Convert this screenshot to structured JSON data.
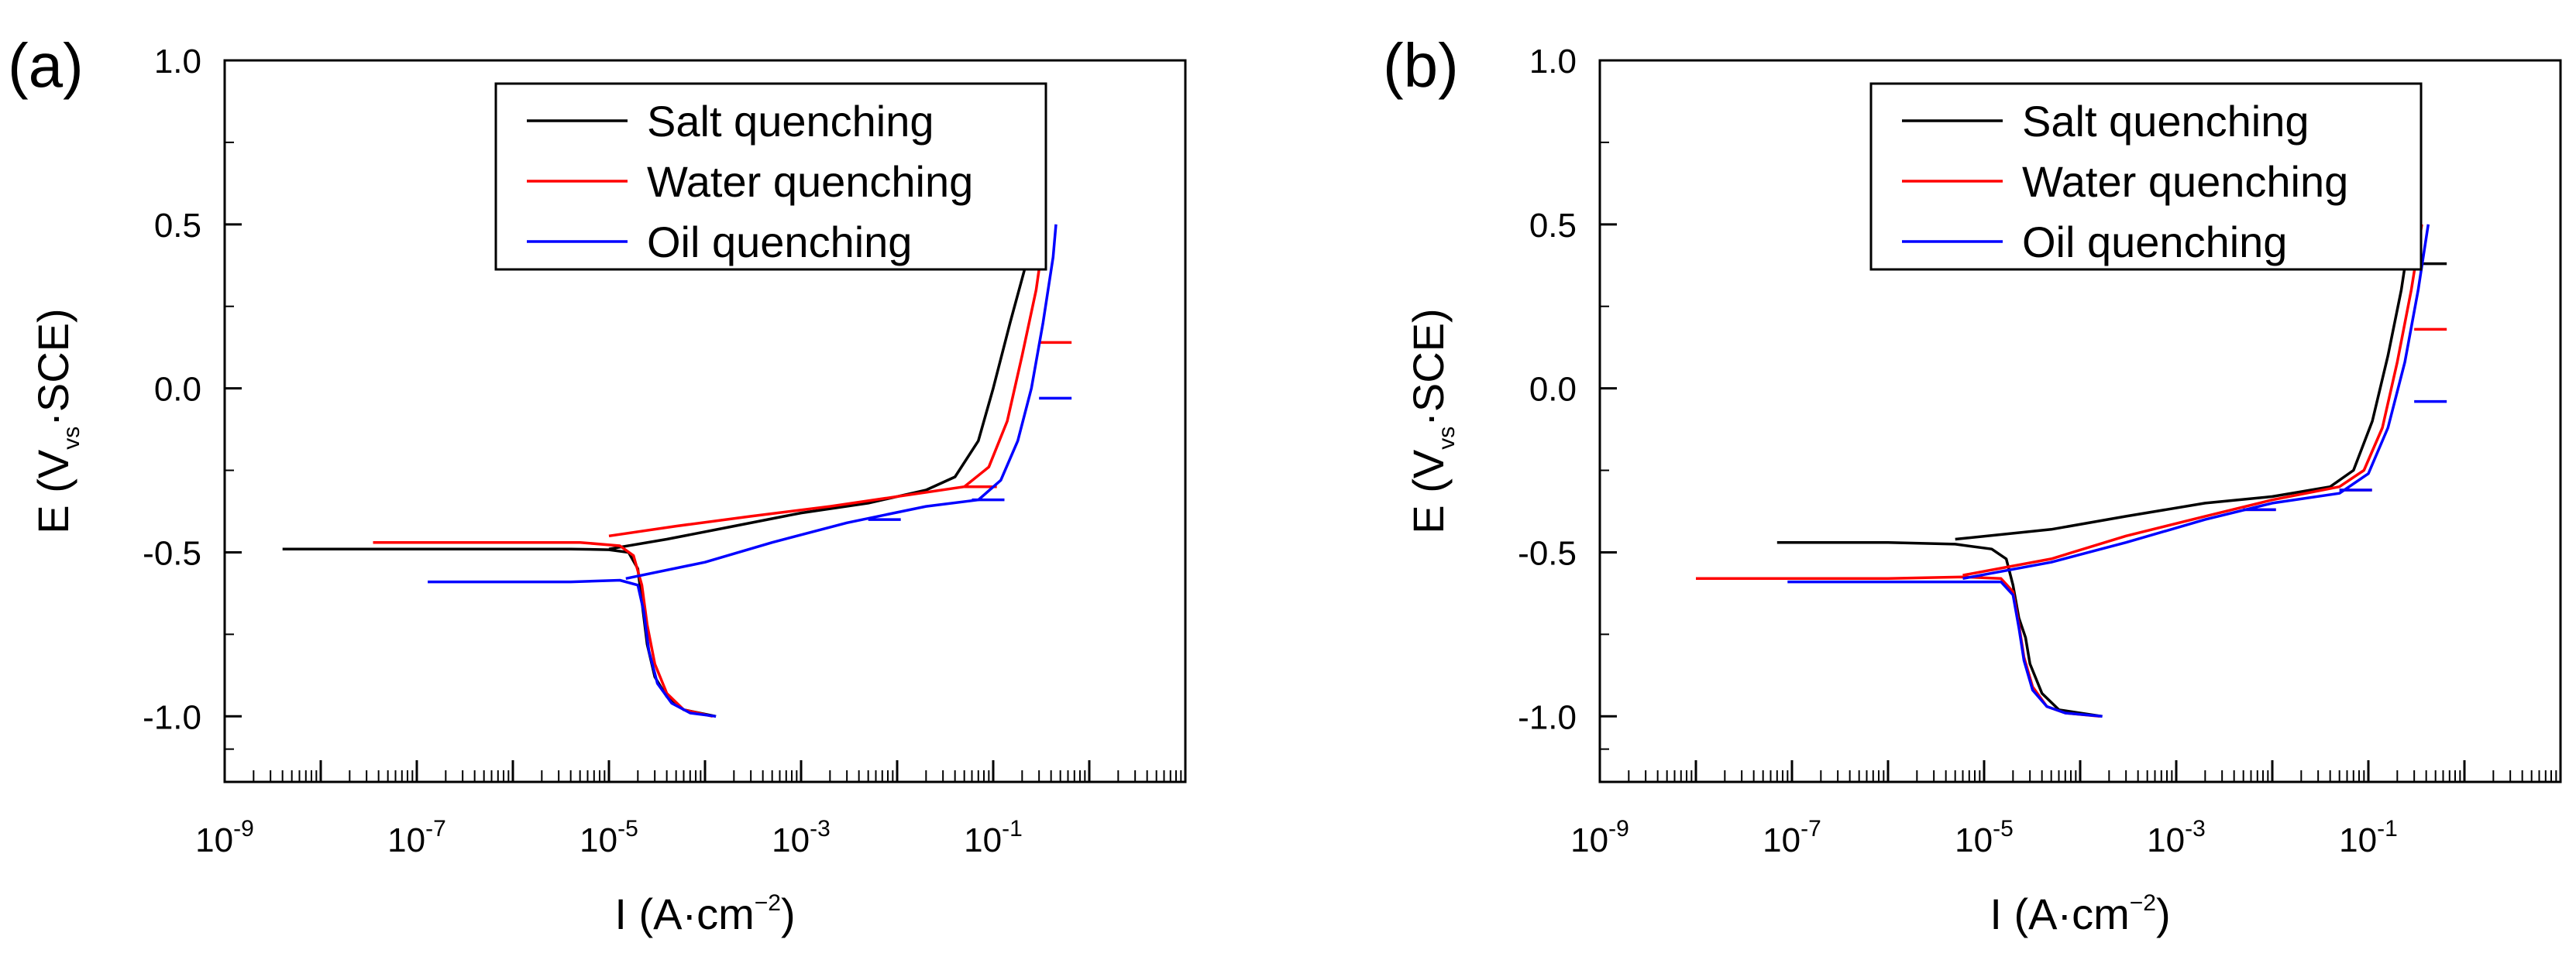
{
  "chart_data": [
    {
      "type": "line",
      "panel_label": "(a)",
      "xlabel": "I (A·cm",
      "xlabel_sup": "−2",
      "xlabel_end": ")",
      "ylabel_main": "E (V",
      "ylabel_sub": "vs",
      "ylabel_end": "·SCE)",
      "x_scale": "log",
      "xlim": [
        1e-09,
        10
      ],
      "ylim": [
        -1.2,
        1.0
      ],
      "x_ticks": [
        {
          "base": "10",
          "exp": "-9"
        },
        {
          "base": "10",
          "exp": "-7"
        },
        {
          "base": "10",
          "exp": "-5"
        },
        {
          "base": "10",
          "exp": "-3"
        },
        {
          "base": "10",
          "exp": "-1"
        }
      ],
      "y_ticks": [
        "1.0",
        "0.5",
        "0.0",
        "-0.5",
        "-1.0"
      ],
      "legend_position": "top",
      "series": [
        {
          "name": "Salt quenching",
          "color": "#000000",
          "points": [
            [
              4e-09,
              -0.49
            ],
            [
              1e-07,
              -0.49
            ],
            [
              1e-06,
              -0.49
            ],
            [
              4e-06,
              -0.49
            ],
            [
              1e-05,
              -0.492
            ],
            [
              1.6e-05,
              -0.5
            ],
            [
              2e-05,
              -0.55
            ],
            [
              2.2e-05,
              -0.65
            ],
            [
              2.5e-05,
              -0.78
            ],
            [
              3e-05,
              -0.88
            ],
            [
              4e-05,
              -0.94
            ],
            [
              6e-05,
              -0.98
            ],
            [
              0.00013,
              -1.0
            ]
          ],
          "anodic": [
            [
              1e-05,
              -0.49
            ],
            [
              4e-05,
              -0.46
            ],
            [
              0.0002,
              -0.42
            ],
            [
              0.001,
              -0.38
            ],
            [
              0.005,
              -0.35
            ],
            [
              0.02,
              -0.31
            ],
            [
              0.04,
              -0.27
            ],
            [
              0.07,
              -0.16
            ],
            [
              0.1,
              0.0
            ],
            [
              0.15,
              0.2
            ],
            [
              0.22,
              0.38
            ],
            [
              0.25,
              0.5
            ]
          ],
          "marks": []
        },
        {
          "name": "Water quenching",
          "color": "#ff0000",
          "points": [
            [
              3.5e-08,
              -0.47
            ],
            [
              1e-06,
              -0.47
            ],
            [
              5e-06,
              -0.47
            ],
            [
              1.3e-05,
              -0.48
            ],
            [
              1.8e-05,
              -0.51
            ],
            [
              2.2e-05,
              -0.6
            ],
            [
              2.5e-05,
              -0.72
            ],
            [
              3e-05,
              -0.84
            ],
            [
              4e-05,
              -0.93
            ],
            [
              6e-05,
              -0.98
            ],
            [
              0.00012,
              -1.0
            ]
          ],
          "anodic": [
            [
              1e-05,
              -0.45
            ],
            [
              5e-05,
              -0.42
            ],
            [
              0.0003,
              -0.39
            ],
            [
              0.002,
              -0.36
            ],
            [
              0.01,
              -0.33
            ],
            [
              0.05,
              -0.3
            ],
            [
              0.09,
              -0.24
            ],
            [
              0.14,
              -0.1
            ],
            [
              0.2,
              0.1
            ],
            [
              0.28,
              0.3
            ],
            [
              0.35,
              0.5
            ]
          ],
          "marks": [
            [
              0.3,
              0.14
            ],
            [
              0.05,
              -0.3
            ]
          ]
        },
        {
          "name": "Oil quenching",
          "color": "#0000ff",
          "points": [
            [
              1.3e-07,
              -0.59
            ],
            [
              1e-06,
              -0.59
            ],
            [
              4e-06,
              -0.59
            ],
            [
              1.3e-05,
              -0.585
            ],
            [
              2e-05,
              -0.6
            ],
            [
              2.3e-05,
              -0.68
            ],
            [
              2.6e-05,
              -0.8
            ],
            [
              3.2e-05,
              -0.9
            ],
            [
              4.5e-05,
              -0.96
            ],
            [
              7e-05,
              -0.99
            ],
            [
              0.00013,
              -1.0
            ]
          ],
          "anodic": [
            [
              1.5e-05,
              -0.58
            ],
            [
              0.0001,
              -0.53
            ],
            [
              0.0005,
              -0.47
            ],
            [
              0.003,
              -0.41
            ],
            [
              0.02,
              -0.36
            ],
            [
              0.07,
              -0.34
            ],
            [
              0.12,
              -0.28
            ],
            [
              0.18,
              -0.16
            ],
            [
              0.25,
              0.0
            ],
            [
              0.33,
              0.2
            ],
            [
              0.42,
              0.4
            ],
            [
              0.45,
              0.5
            ]
          ],
          "marks": [
            [
              0.3,
              -0.03
            ],
            [
              0.005,
              -0.4
            ],
            [
              0.06,
              -0.34
            ]
          ]
        }
      ]
    },
    {
      "type": "line",
      "panel_label": "(b)",
      "xlabel": "I (A·cm",
      "xlabel_sup": "−2",
      "xlabel_end": ")",
      "ylabel_main": "E (V",
      "ylabel_sub": "vs",
      "ylabel_end": "·SCE)",
      "x_scale": "log",
      "xlim": [
        1e-09,
        10
      ],
      "ylim": [
        -1.2,
        1.0
      ],
      "x_ticks": [
        {
          "base": "10",
          "exp": "-9"
        },
        {
          "base": "10",
          "exp": "-7"
        },
        {
          "base": "10",
          "exp": "-5"
        },
        {
          "base": "10",
          "exp": "-3"
        },
        {
          "base": "10",
          "exp": "-1"
        }
      ],
      "y_ticks": [
        "1.0",
        "0.5",
        "0.0",
        "-0.5",
        "-1.0"
      ],
      "legend_position": "top",
      "series": [
        {
          "name": "Salt quenching",
          "color": "#000000",
          "points": [
            [
              7e-08,
              -0.47
            ],
            [
              1e-06,
              -0.47
            ],
            [
              5e-06,
              -0.475
            ],
            [
              1.2e-05,
              -0.49
            ],
            [
              1.7e-05,
              -0.52
            ],
            [
              2e-05,
              -0.6
            ],
            [
              2.3e-05,
              -0.7
            ],
            [
              2.7e-05,
              -0.76
            ],
            [
              3e-05,
              -0.84
            ],
            [
              4e-05,
              -0.93
            ],
            [
              6e-05,
              -0.98
            ],
            [
              0.00017,
              -1.0
            ]
          ],
          "anodic": [
            [
              5e-06,
              -0.46
            ],
            [
              5e-05,
              -0.43
            ],
            [
              0.0003,
              -0.39
            ],
            [
              0.002,
              -0.35
            ],
            [
              0.01,
              -0.33
            ],
            [
              0.04,
              -0.3
            ],
            [
              0.07,
              -0.25
            ],
            [
              0.11,
              -0.1
            ],
            [
              0.16,
              0.1
            ],
            [
              0.22,
              0.3
            ],
            [
              0.28,
              0.5
            ]
          ],
          "marks": [
            [
              0.3,
              0.38
            ]
          ]
        },
        {
          "name": "Water quenching",
          "color": "#ff0000",
          "points": [
            [
              1e-08,
              -0.58
            ],
            [
              1e-06,
              -0.58
            ],
            [
              6e-06,
              -0.575
            ],
            [
              1.5e-05,
              -0.58
            ],
            [
              2e-05,
              -0.62
            ],
            [
              2.3e-05,
              -0.72
            ],
            [
              2.6e-05,
              -0.82
            ],
            [
              3.2e-05,
              -0.91
            ],
            [
              4.5e-05,
              -0.97
            ],
            [
              7e-05,
              -0.99
            ],
            [
              0.00016,
              -1.0
            ]
          ],
          "anodic": [
            [
              6e-06,
              -0.57
            ],
            [
              5e-05,
              -0.52
            ],
            [
              0.0003,
              -0.45
            ],
            [
              0.002,
              -0.39
            ],
            [
              0.01,
              -0.34
            ],
            [
              0.05,
              -0.3
            ],
            [
              0.09,
              -0.25
            ],
            [
              0.14,
              -0.12
            ],
            [
              0.2,
              0.08
            ],
            [
              0.28,
              0.3
            ],
            [
              0.36,
              0.5
            ]
          ],
          "marks": [
            [
              0.3,
              0.18
            ],
            [
              0.005,
              -0.37
            ],
            [
              0.05,
              -0.31
            ]
          ]
        },
        {
          "name": "Oil quenching",
          "color": "#0000ff",
          "points": [
            [
              9e-08,
              -0.59
            ],
            [
              1e-06,
              -0.59
            ],
            [
              6e-06,
              -0.59
            ],
            [
              1.5e-05,
              -0.59
            ],
            [
              2e-05,
              -0.63
            ],
            [
              2.3e-05,
              -0.73
            ],
            [
              2.6e-05,
              -0.83
            ],
            [
              3.2e-05,
              -0.92
            ],
            [
              4.5e-05,
              -0.97
            ],
            [
              7e-05,
              -0.99
            ],
            [
              0.00017,
              -1.0
            ]
          ],
          "anodic": [
            [
              6e-06,
              -0.58
            ],
            [
              5e-05,
              -0.53
            ],
            [
              0.0003,
              -0.47
            ],
            [
              0.002,
              -0.4
            ],
            [
              0.01,
              -0.35
            ],
            [
              0.05,
              -0.32
            ],
            [
              0.1,
              -0.26
            ],
            [
              0.16,
              -0.12
            ],
            [
              0.24,
              0.08
            ],
            [
              0.33,
              0.3
            ],
            [
              0.42,
              0.5
            ]
          ],
          "marks": [
            [
              0.3,
              -0.04
            ],
            [
              0.005,
              -0.37
            ],
            [
              0.05,
              -0.31
            ]
          ]
        }
      ]
    }
  ]
}
